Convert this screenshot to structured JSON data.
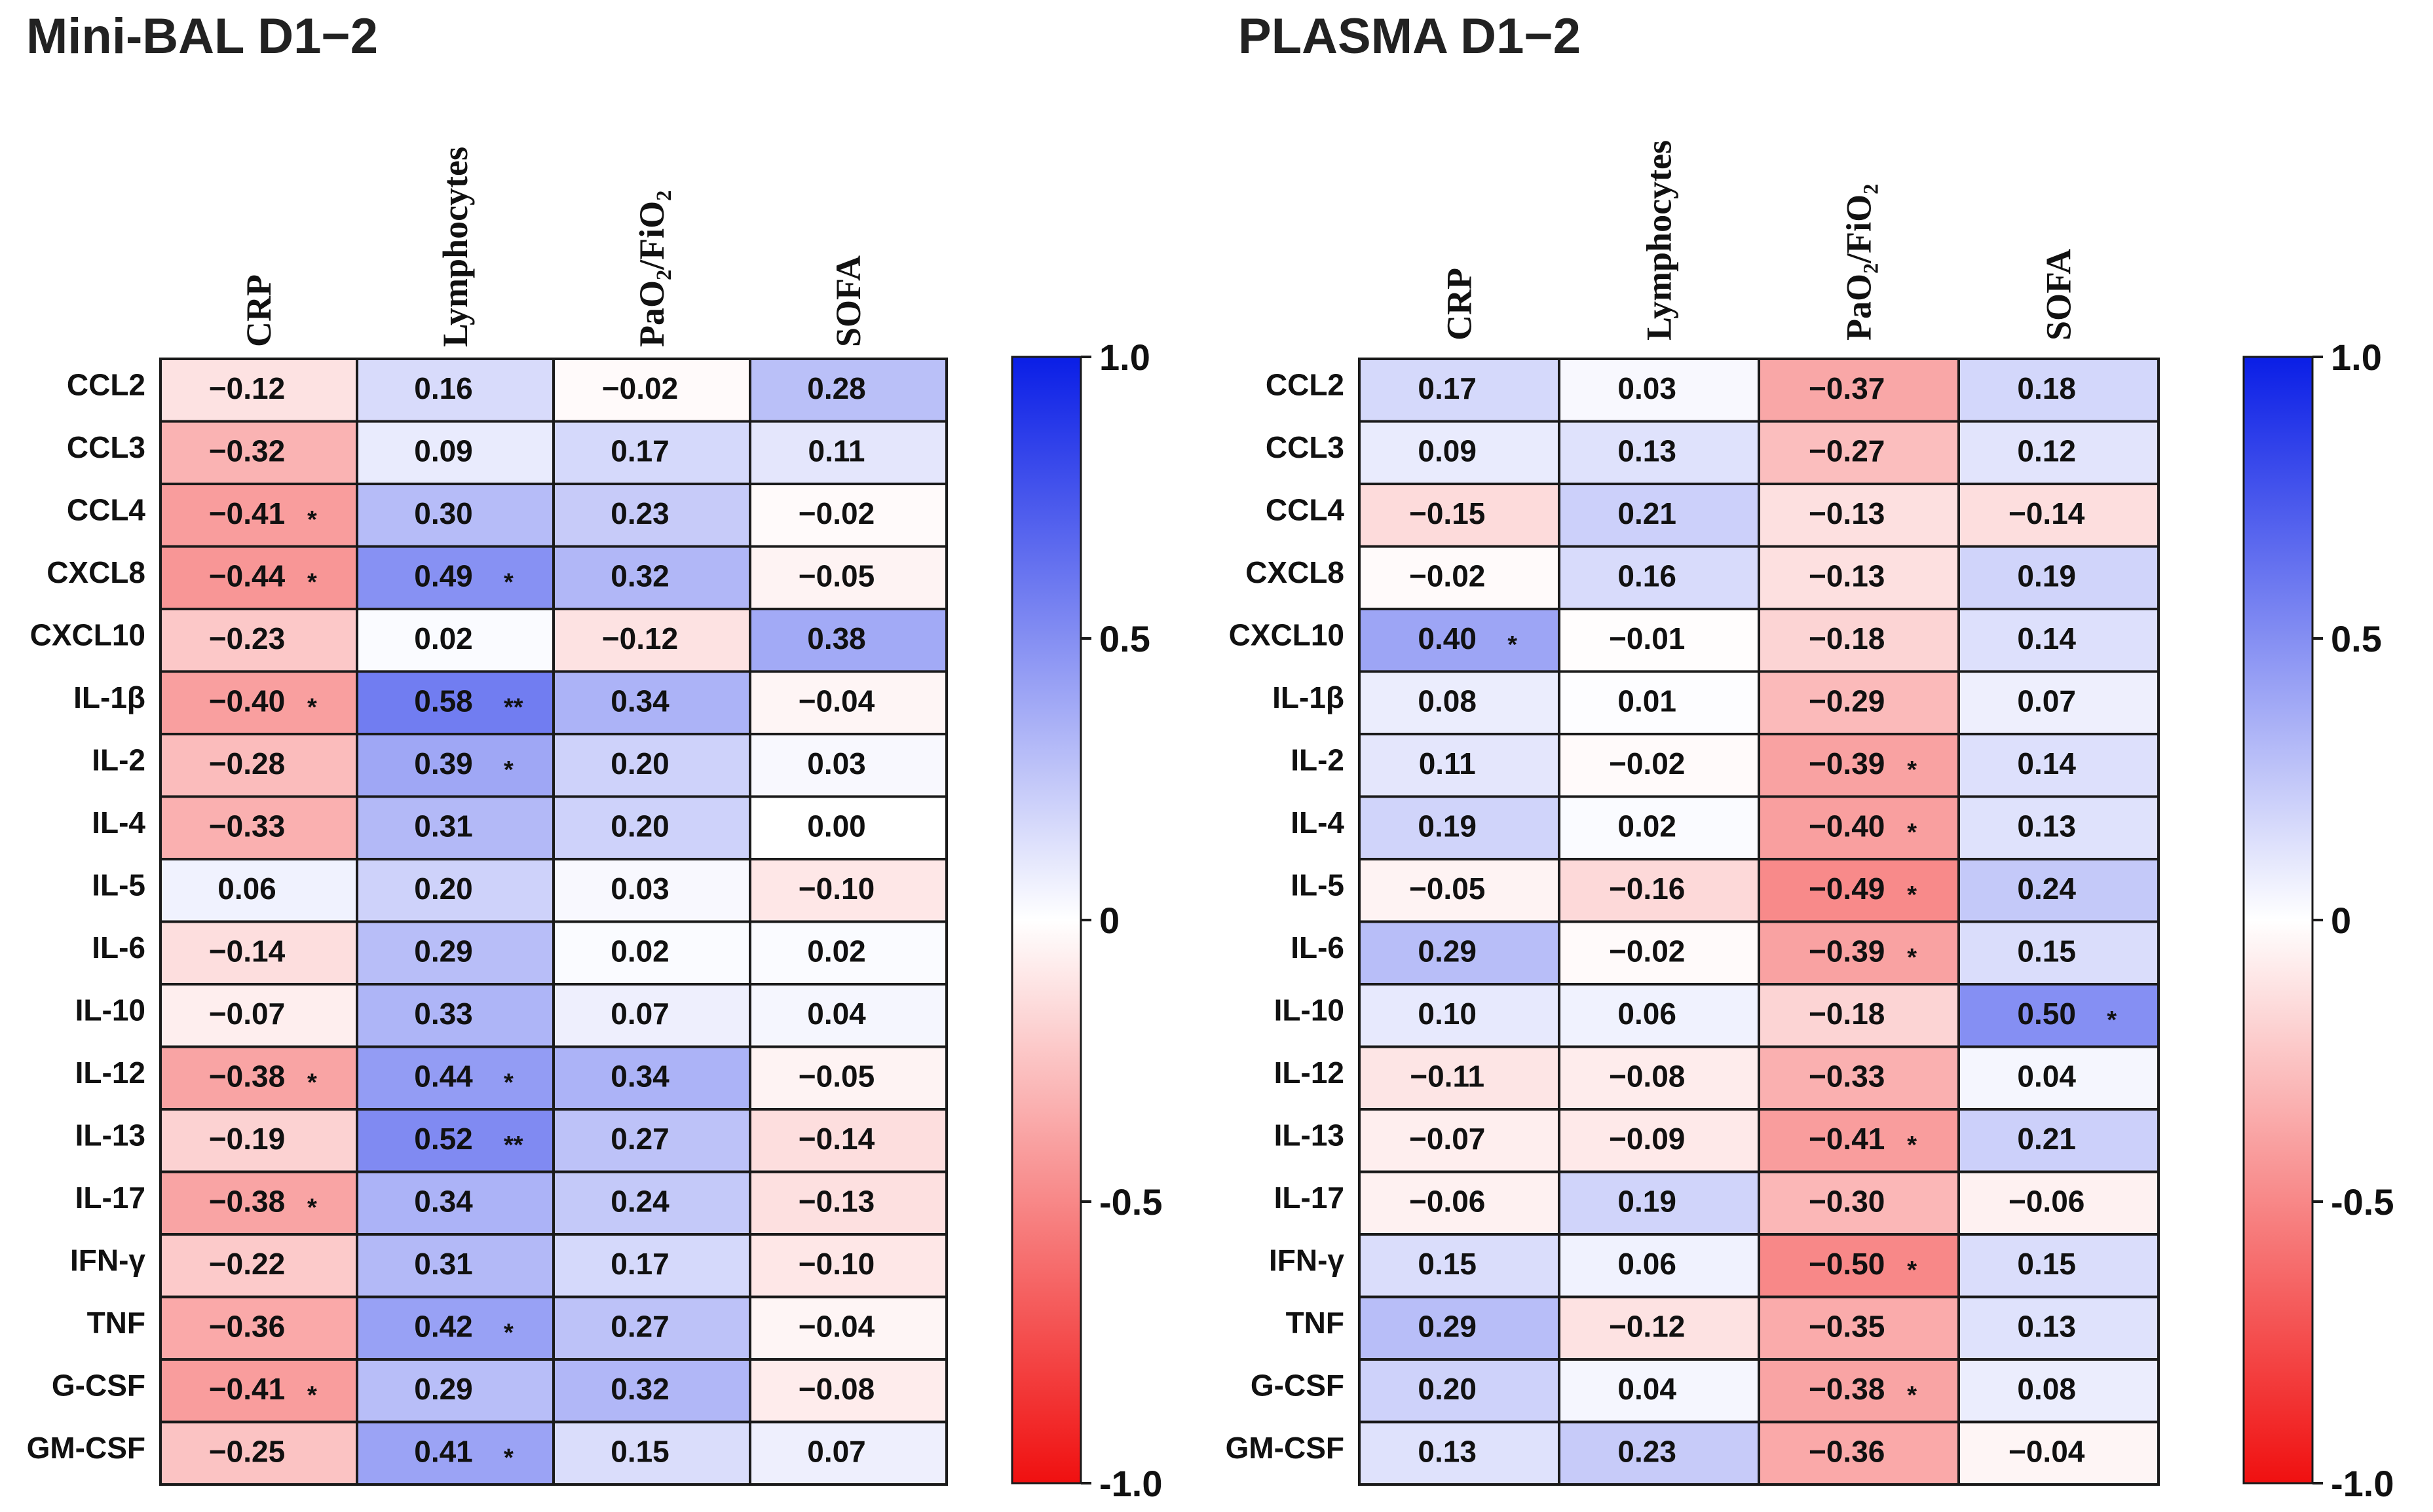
{
  "colors": {
    "positive": "#0a1ee6",
    "negative": "#f01010",
    "neutral": "#ffffff",
    "grid": "#1a1a1a",
    "text": "#111111"
  },
  "chart_data": [
    {
      "type": "heatmap",
      "title": "Mini-BAL D1−2",
      "columns": [
        "CRP",
        "Lymphocytes",
        "PaO₂/FiO₂",
        "SOFA"
      ],
      "rows": [
        "CCL2",
        "CCL3",
        "CCL4",
        "CXCL8",
        "CXCL10",
        "IL-1β",
        "IL-2",
        "IL-4",
        "IL-5",
        "IL-6",
        "IL-10",
        "IL-12",
        "IL-13",
        "IL-17",
        "IFN-γ",
        "TNF",
        "G-CSF",
        "GM-CSF"
      ],
      "values": [
        [
          -0.12,
          0.16,
          -0.02,
          0.28
        ],
        [
          -0.32,
          0.09,
          0.17,
          0.11
        ],
        [
          -0.41,
          0.3,
          0.23,
          -0.02
        ],
        [
          -0.44,
          0.49,
          0.32,
          -0.05
        ],
        [
          -0.23,
          0.02,
          -0.12,
          0.38
        ],
        [
          -0.4,
          0.58,
          0.34,
          -0.04
        ],
        [
          -0.28,
          0.39,
          0.2,
          0.03
        ],
        [
          -0.33,
          0.31,
          0.2,
          0.0
        ],
        [
          0.06,
          0.2,
          0.03,
          -0.1
        ],
        [
          -0.14,
          0.29,
          0.02,
          0.02
        ],
        [
          -0.07,
          0.33,
          0.07,
          0.04
        ],
        [
          -0.38,
          0.44,
          0.34,
          -0.05
        ],
        [
          -0.19,
          0.52,
          0.27,
          -0.14
        ],
        [
          -0.38,
          0.34,
          0.24,
          -0.13
        ],
        [
          -0.22,
          0.31,
          0.17,
          -0.1
        ],
        [
          -0.36,
          0.42,
          0.27,
          -0.04
        ],
        [
          -0.41,
          0.29,
          0.32,
          -0.08
        ],
        [
          -0.25,
          0.41,
          0.15,
          0.07
        ]
      ],
      "labels": [
        [
          "−0.12",
          "0.16",
          "−0.02",
          "0.28"
        ],
        [
          "−0.32",
          "0.09",
          "0.17",
          "0.11"
        ],
        [
          "−0.41",
          "0.30",
          "0.23",
          "−0.02"
        ],
        [
          "−0.44",
          "0.49",
          "0.32",
          "−0.05"
        ],
        [
          "−0.23",
          "0.02",
          "−0.12",
          "0.38"
        ],
        [
          "−0.40",
          "0.58",
          "0.34",
          "−0.04"
        ],
        [
          "−0.28",
          "0.39",
          "0.20",
          "0.03"
        ],
        [
          "−0.33",
          "0.31",
          "0.20",
          "0.00"
        ],
        [
          "0.06",
          "0.20",
          "0.03",
          "−0.10"
        ],
        [
          "−0.14",
          "0.29",
          "0.02",
          "0.02"
        ],
        [
          "−0.07",
          "0.33",
          "0.07",
          "0.04"
        ],
        [
          "−0.38",
          "0.44",
          "0.34",
          "−0.05"
        ],
        [
          "−0.19",
          "0.52",
          "0.27",
          "−0.14"
        ],
        [
          "−0.38",
          "0.34",
          "0.24",
          "−0.13"
        ],
        [
          "−0.22",
          "0.31",
          "0.17",
          "−0.10"
        ],
        [
          "−0.36",
          "0.42",
          "0.27",
          "−0.04"
        ],
        [
          "−0.41",
          "0.29",
          "0.32",
          "−0.08"
        ],
        [
          "−0.25",
          "0.41",
          "0.15",
          "0.07"
        ]
      ],
      "significance": [
        [
          "",
          "",
          "",
          ""
        ],
        [
          "",
          "",
          "",
          ""
        ],
        [
          "*",
          "",
          "",
          ""
        ],
        [
          "*",
          "*",
          "",
          ""
        ],
        [
          "",
          "",
          "",
          ""
        ],
        [
          "*",
          "**",
          "",
          ""
        ],
        [
          "",
          "*",
          "",
          ""
        ],
        [
          "",
          "",
          "",
          ""
        ],
        [
          "",
          "",
          "",
          ""
        ],
        [
          "",
          "",
          "",
          ""
        ],
        [
          "",
          "",
          "",
          ""
        ],
        [
          "*",
          "*",
          "",
          ""
        ],
        [
          "",
          "**",
          "",
          ""
        ],
        [
          "*",
          "",
          "",
          ""
        ],
        [
          "",
          "",
          "",
          ""
        ],
        [
          "",
          "*",
          "",
          ""
        ],
        [
          "*",
          "",
          "",
          ""
        ],
        [
          "",
          "*",
          "",
          ""
        ]
      ],
      "colorbar": {
        "range": [
          -1.0,
          1.0
        ],
        "ticks": [
          1.0,
          0.5,
          0,
          -0.5,
          -1.0
        ],
        "tick_labels": [
          "1.0",
          "0.5",
          "0",
          "-0.5",
          "-1.0"
        ]
      }
    },
    {
      "type": "heatmap",
      "title": "PLASMA D1−2",
      "columns": [
        "CRP",
        "Lymphocytes",
        "PaO₂/FiO₂",
        "SOFA"
      ],
      "rows": [
        "CCL2",
        "CCL3",
        "CCL4",
        "CXCL8",
        "CXCL10",
        "IL-1β",
        "IL-2",
        "IL-4",
        "IL-5",
        "IL-6",
        "IL-10",
        "IL-12",
        "IL-13",
        "IL-17",
        "IFN-γ",
        "TNF",
        "G-CSF",
        "GM-CSF"
      ],
      "values": [
        [
          0.17,
          0.03,
          -0.37,
          0.18
        ],
        [
          0.09,
          0.13,
          -0.27,
          0.12
        ],
        [
          -0.15,
          0.21,
          -0.13,
          -0.14
        ],
        [
          -0.02,
          0.16,
          -0.13,
          0.19
        ],
        [
          0.4,
          -0.01,
          -0.18,
          0.14
        ],
        [
          0.08,
          0.01,
          -0.29,
          0.07
        ],
        [
          0.11,
          -0.02,
          -0.39,
          0.14
        ],
        [
          0.19,
          0.02,
          -0.4,
          0.13
        ],
        [
          -0.05,
          -0.16,
          -0.49,
          0.24
        ],
        [
          0.29,
          -0.02,
          -0.39,
          0.15
        ],
        [
          0.1,
          0.06,
          -0.18,
          0.5
        ],
        [
          -0.11,
          -0.08,
          -0.33,
          0.04
        ],
        [
          -0.07,
          -0.09,
          -0.41,
          0.21
        ],
        [
          -0.06,
          0.19,
          -0.3,
          -0.06
        ],
        [
          0.15,
          0.06,
          -0.5,
          0.15
        ],
        [
          0.29,
          -0.12,
          -0.35,
          0.13
        ],
        [
          0.2,
          0.04,
          -0.38,
          0.08
        ],
        [
          0.13,
          0.23,
          -0.36,
          -0.04
        ]
      ],
      "labels": [
        [
          "0.17",
          "0.03",
          "−0.37",
          "0.18"
        ],
        [
          "0.09",
          "0.13",
          "−0.27",
          "0.12"
        ],
        [
          "−0.15",
          "0.21",
          "−0.13",
          "−0.14"
        ],
        [
          "−0.02",
          "0.16",
          "−0.13",
          "0.19"
        ],
        [
          "0.40",
          "−0.01",
          "−0.18",
          "0.14"
        ],
        [
          "0.08",
          "0.01",
          "−0.29",
          "0.07"
        ],
        [
          "0.11",
          "−0.02",
          "−0.39",
          "0.14"
        ],
        [
          "0.19",
          "0.02",
          "−0.40",
          "0.13"
        ],
        [
          "−0.05",
          "−0.16",
          "−0.49",
          "0.24"
        ],
        [
          "0.29",
          "−0.02",
          "−0.39",
          "0.15"
        ],
        [
          "0.10",
          "0.06",
          "−0.18",
          "0.50"
        ],
        [
          "−0.11",
          "−0.08",
          "−0.33",
          "0.04"
        ],
        [
          "−0.07",
          "−0.09",
          "−0.41",
          "0.21"
        ],
        [
          "−0.06",
          "0.19",
          "−0.30",
          "−0.06"
        ],
        [
          "0.15",
          "0.06",
          "−0.50",
          "0.15"
        ],
        [
          "0.29",
          "−0.12",
          "−0.35",
          "0.13"
        ],
        [
          "0.20",
          "0.04",
          "−0.38",
          "0.08"
        ],
        [
          "0.13",
          "0.23",
          "−0.36",
          "−0.04"
        ]
      ],
      "significance": [
        [
          "",
          "",
          "",
          ""
        ],
        [
          "",
          "",
          "",
          ""
        ],
        [
          "",
          "",
          "",
          ""
        ],
        [
          "",
          "",
          "",
          ""
        ],
        [
          "*",
          "",
          "",
          ""
        ],
        [
          "",
          "",
          "",
          ""
        ],
        [
          "",
          "",
          "*",
          ""
        ],
        [
          "",
          "",
          "*",
          ""
        ],
        [
          "",
          "",
          "*",
          ""
        ],
        [
          "",
          "",
          "*",
          ""
        ],
        [
          "",
          "",
          "",
          "*"
        ],
        [
          "",
          "",
          "",
          ""
        ],
        [
          "",
          "",
          "*",
          ""
        ],
        [
          "",
          "",
          "",
          ""
        ],
        [
          "",
          "",
          "*",
          ""
        ],
        [
          "",
          "",
          "",
          ""
        ],
        [
          "",
          "",
          "*",
          ""
        ],
        [
          "",
          "",
          "",
          ""
        ]
      ],
      "colorbar": {
        "range": [
          -1.0,
          1.0
        ],
        "ticks": [
          1.0,
          0.5,
          0,
          -0.5,
          -1.0
        ],
        "tick_labels": [
          "1.0",
          "0.5",
          "0",
          "-0.5",
          "-1.0"
        ]
      }
    }
  ]
}
